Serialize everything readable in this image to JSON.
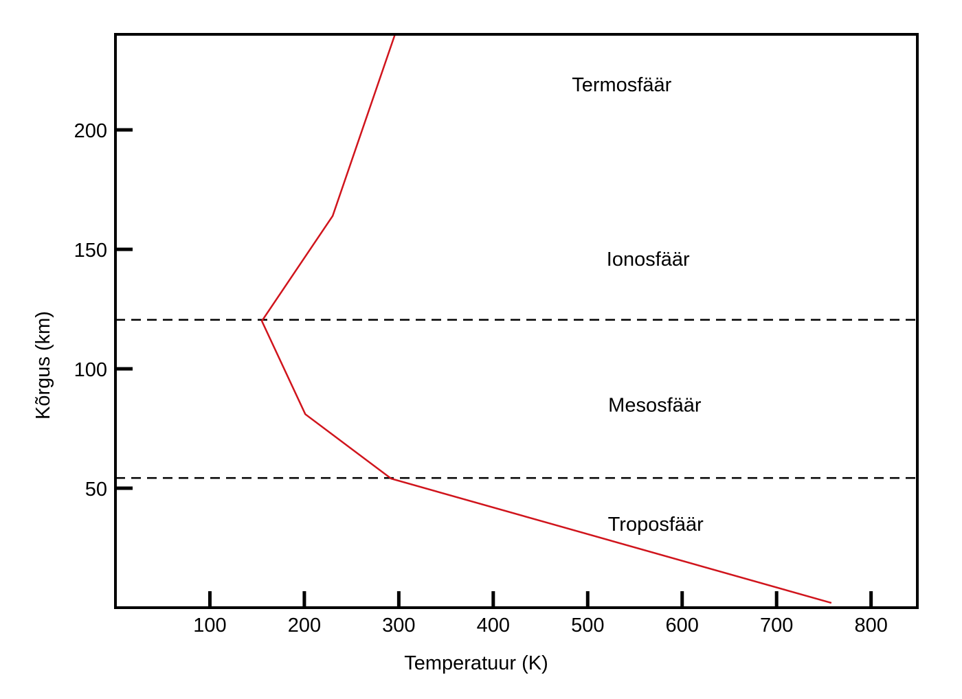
{
  "chart_data": {
    "type": "line",
    "title": "",
    "xlabel": "Temperatuur (K)",
    "ylabel": "Kõrgus (km)",
    "xlim": [
      0,
      849
    ],
    "ylim": [
      0,
      240
    ],
    "x_ticks": [
      100,
      200,
      300,
      400,
      500,
      600,
      700,
      800
    ],
    "x_tick_labels": [
      "100",
      "200",
      "300",
      "400",
      "500",
      "600",
      "700",
      "800"
    ],
    "y_ticks": [
      50,
      100,
      150,
      200
    ],
    "y_tick_labels": [
      "50",
      "100",
      "150",
      "200"
    ],
    "grid": false,
    "series": [
      {
        "color": "#d0141c",
        "points": [
          {
            "x": 758,
            "y": 2
          },
          {
            "x": 292,
            "y": 54
          },
          {
            "x": 201,
            "y": 81
          },
          {
            "x": 155,
            "y": 120
          },
          {
            "x": 230,
            "y": 164
          },
          {
            "x": 296,
            "y": 240
          }
        ]
      }
    ],
    "boundaries": [
      {
        "y": 54.3,
        "style": "dashed",
        "color": "#000000"
      },
      {
        "y": 120.5,
        "style": "dashed",
        "color": "#000000"
      }
    ],
    "annotations": [
      {
        "text": "Termosfäär",
        "x": 536,
        "y": 219
      },
      {
        "text": "Ionosfäär",
        "x": 564,
        "y": 146
      },
      {
        "text": "Mesosfäär",
        "x": 571,
        "y": 85
      },
      {
        "text": "Troposfäär",
        "x": 572,
        "y": 35
      }
    ]
  }
}
